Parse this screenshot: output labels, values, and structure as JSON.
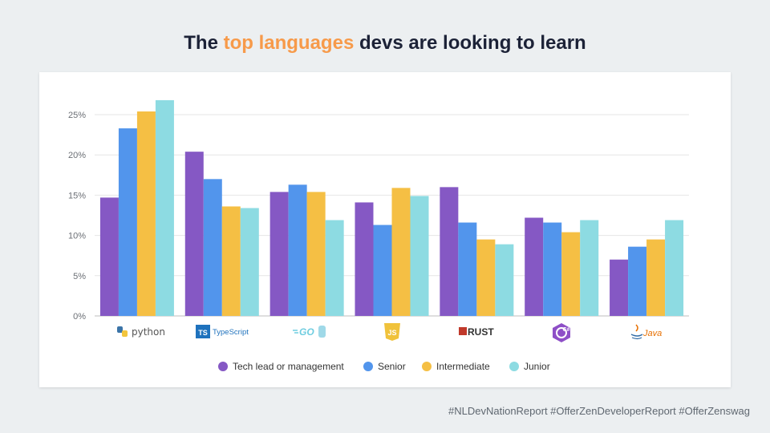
{
  "header": {
    "title_prefix": "The ",
    "title_accent": "top languages",
    "title_suffix": " devs are looking to learn"
  },
  "footer": {
    "hashtags": "#NLDevNationReport #OfferZenDeveloperReport #OfferZenswag"
  },
  "colors": {
    "accent": "#f79a4a",
    "tech_lead": "#8558c4",
    "senior": "#5295ec",
    "intermediate": "#f5bf44",
    "junior": "#8ddbe2"
  },
  "chart_data": {
    "type": "bar",
    "title": "The top languages devs are looking to learn",
    "categories": [
      "python",
      "TypeScript",
      "GO",
      "JS",
      "RUST",
      "C#",
      "Java"
    ],
    "ylim": [
      0,
      25
    ],
    "y_ticks": [
      "0%",
      "5%",
      "10%",
      "15%",
      "20%",
      "25%"
    ],
    "grid": true,
    "legend_position": "bottom",
    "series": [
      {
        "name": "Tech lead or management",
        "color": "#8558c4",
        "values": [
          14.7,
          20.4,
          15.4,
          14.1,
          16.0,
          12.2,
          7.0
        ]
      },
      {
        "name": "Senior",
        "color": "#5295ec",
        "values": [
          23.3,
          17.0,
          16.3,
          11.3,
          11.6,
          11.6,
          8.6
        ]
      },
      {
        "name": "Intermediate",
        "color": "#f5bf44",
        "values": [
          25.4,
          13.6,
          15.4,
          15.9,
          9.5,
          10.4,
          9.5
        ]
      },
      {
        "name": "Junior",
        "color": "#8ddbe2",
        "values": [
          26.8,
          13.4,
          11.9,
          14.9,
          8.9,
          11.9,
          11.9
        ]
      }
    ]
  }
}
